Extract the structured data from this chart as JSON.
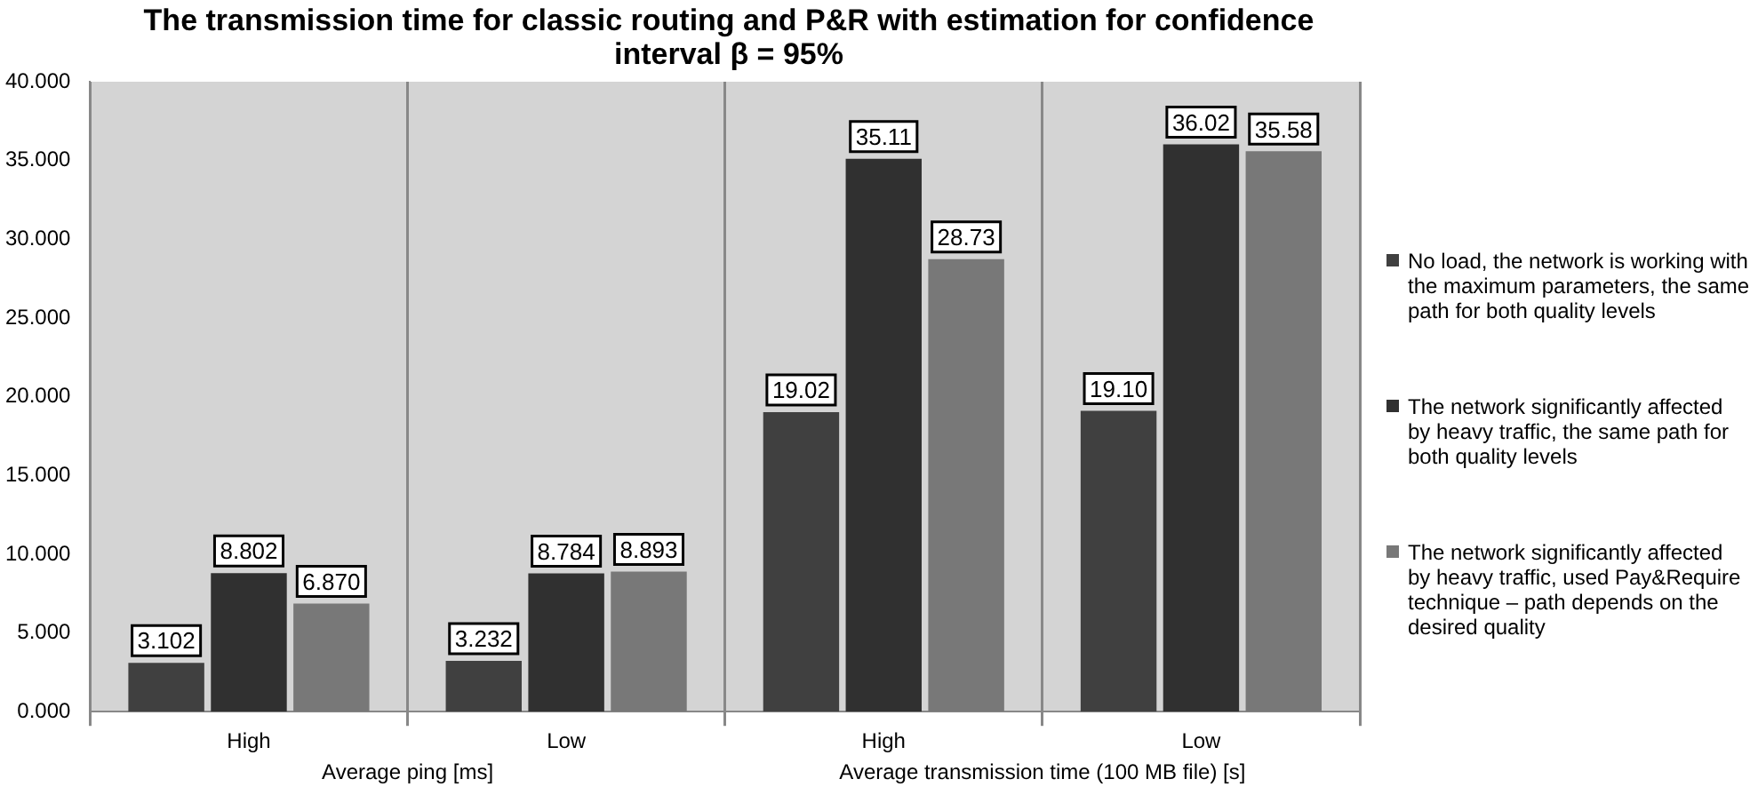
{
  "chart_data": {
    "type": "bar",
    "title": "The transmission time for classic routing and P&R with estimation for confidence interval β = 95%",
    "categories": [
      "High",
      "Low",
      "High",
      "Low"
    ],
    "series": [
      {
        "name": "No load, the network is working with the maximum parameters, the same path for both quality levels",
        "color": "#404040",
        "values": [
          3.102,
          3.232,
          19.02,
          19.1
        ],
        "value_labels": [
          "3.102",
          "3.232",
          "19.02",
          "19.10"
        ]
      },
      {
        "name": "The network significantly affected by heavy traffic, the same path for both quality levels",
        "color": "#303030",
        "values": [
          8.802,
          8.784,
          35.11,
          36.02
        ],
        "value_labels": [
          "8.802",
          "8.784",
          "35.11",
          "36.02"
        ]
      },
      {
        "name": "The network significantly affected by heavy traffic, used Pay&Require technique – path depends on the desired quality",
        "color": "#787878",
        "values": [
          6.87,
          8.893,
          28.73,
          35.58
        ],
        "value_labels": [
          "6.870",
          "8.893",
          "28.73",
          "35.58"
        ]
      }
    ],
    "ylim": [
      0,
      40
    ],
    "yticks": [
      {
        "value": 0,
        "label": "0.000"
      },
      {
        "value": 5,
        "label": "5.000"
      },
      {
        "value": 10,
        "label": "10.000"
      },
      {
        "value": 15,
        "label": "15.000"
      },
      {
        "value": 20,
        "label": "20.000"
      },
      {
        "value": 25,
        "label": "25.000"
      },
      {
        "value": 30,
        "label": "30.000"
      },
      {
        "value": 35,
        "label": "35.000"
      },
      {
        "value": 40,
        "label": "40.000"
      }
    ],
    "grid": "x",
    "legend": "right",
    "annotations": [
      "Average ping [ms]",
      "Average transmission time (100 MB file) [s]"
    ]
  }
}
